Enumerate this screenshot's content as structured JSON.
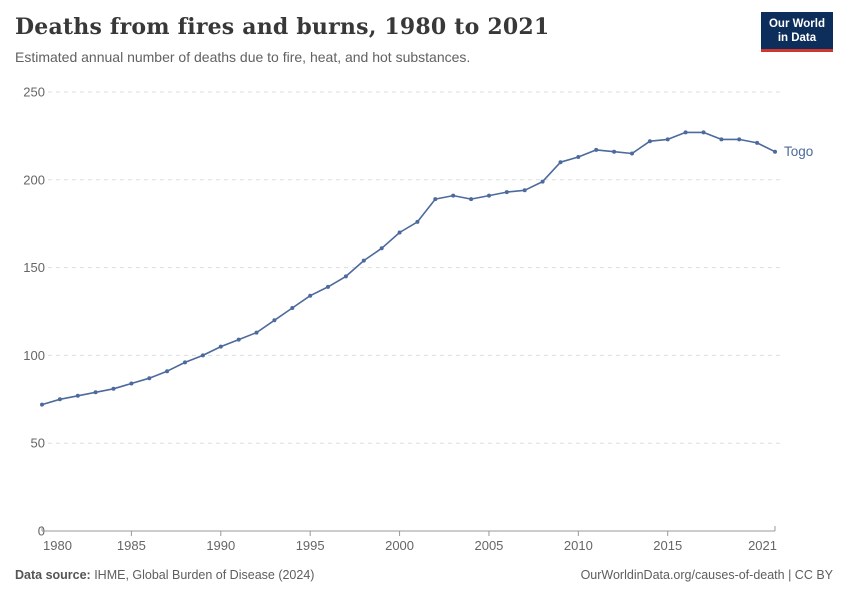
{
  "header": {
    "title": "Deaths from fires and burns, 1980 to 2021",
    "subtitle": "Estimated annual number of deaths due to fire, heat, and hot substances."
  },
  "logo": {
    "line1": "Our World",
    "line2": "in Data",
    "background_color": "#0d2d5a",
    "accent_color": "#cd372d"
  },
  "chart_data": {
    "type": "line",
    "title": "Deaths from fires and burns, 1980 to 2021",
    "xlabel": "",
    "ylabel": "",
    "xlim": [
      1980,
      2021
    ],
    "ylim": [
      0,
      250
    ],
    "x_ticks": [
      1980,
      1985,
      1990,
      1995,
      2000,
      2005,
      2010,
      2015,
      2021
    ],
    "y_ticks": [
      0,
      50,
      100,
      150,
      200,
      250
    ],
    "grid": "horizontal-dashed",
    "legend_position": "end-of-line-label",
    "x": [
      1980,
      1981,
      1982,
      1983,
      1984,
      1985,
      1986,
      1987,
      1988,
      1989,
      1990,
      1991,
      1992,
      1993,
      1994,
      1995,
      1996,
      1997,
      1998,
      1999,
      2000,
      2001,
      2002,
      2003,
      2004,
      2005,
      2006,
      2007,
      2008,
      2009,
      2010,
      2011,
      2012,
      2013,
      2014,
      2015,
      2016,
      2017,
      2018,
      2019,
      2020,
      2021
    ],
    "series": [
      {
        "name": "Togo",
        "color": "#4C6A9C",
        "values": [
          72,
          75,
          77,
          79,
          81,
          84,
          87,
          91,
          96,
          100,
          105,
          109,
          113,
          120,
          127,
          134,
          139,
          145,
          154,
          161,
          170,
          176,
          189,
          191,
          189,
          191,
          193,
          194,
          199,
          210,
          213,
          217,
          216,
          215,
          222,
          223,
          227,
          227,
          223,
          223,
          221,
          216
        ]
      }
    ]
  },
  "axis_style": {
    "tick_label_color": "#666666",
    "gridline_color": "#dddddd",
    "axis_line_color": "#999999"
  },
  "footer": {
    "source_label": "Data source:",
    "source_text": " IHME, Global Burden of Disease (2024)",
    "credit": "OurWorldinData.org/causes-of-death | CC BY"
  }
}
